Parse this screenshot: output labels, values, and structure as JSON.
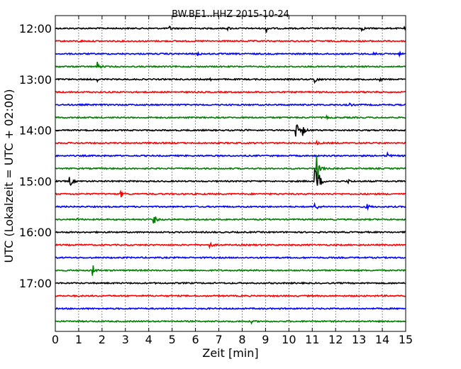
{
  "chart_data": {
    "type": "line",
    "title": "BW.BE1..HHZ 2015-10-24",
    "xlabel": "Zeit  [min]",
    "ylabel": "UTC (Lokalzeit = UTC + 02:00)",
    "xlim": [
      0,
      15
    ],
    "x_ticks": [
      "0",
      "1",
      "2",
      "3",
      "4",
      "5",
      "6",
      "7",
      "8",
      "9",
      "10",
      "11",
      "12",
      "13",
      "14",
      "15"
    ],
    "y_ticks": [
      "12:00",
      "13:00",
      "14:00",
      "15:00",
      "16:00",
      "17:00"
    ],
    "grid": "vertical dotted",
    "trace_colors": [
      "#000000",
      "#ff0000",
      "#0000ff",
      "#008000"
    ],
    "trace_interval_minutes": 15,
    "traces": [
      {
        "start": "12:00",
        "events": [
          {
            "t": 4.9,
            "amp": 0.35
          },
          {
            "t": 7.4,
            "amp": 0.25
          },
          {
            "t": 9.0,
            "amp": 1.0
          },
          {
            "t": 13.1,
            "amp": 0.5
          },
          {
            "t": 14.9,
            "amp": 0.2
          }
        ]
      },
      {
        "start": "12:15",
        "events": [
          {
            "t": 1.0,
            "amp": 0.15
          }
        ]
      },
      {
        "start": "12:30",
        "events": [
          {
            "t": 6.1,
            "amp": 0.3
          },
          {
            "t": 13.6,
            "amp": 1.2
          },
          {
            "t": 14.7,
            "amp": 0.3
          }
        ]
      },
      {
        "start": "12:45",
        "events": [
          {
            "t": 1.8,
            "amp": 0.8
          }
        ]
      },
      {
        "start": "13:00",
        "events": [
          {
            "t": 1.8,
            "amp": 0.25
          },
          {
            "t": 6.6,
            "amp": 0.25
          },
          {
            "t": 11.1,
            "amp": 0.9
          },
          {
            "t": 13.9,
            "amp": 0.2
          }
        ]
      },
      {
        "start": "13:15",
        "events": []
      },
      {
        "start": "13:30",
        "events": [
          {
            "t": 12.5,
            "amp": 0.6
          }
        ]
      },
      {
        "start": "13:45",
        "events": [
          {
            "t": 11.6,
            "amp": 0.2
          }
        ]
      },
      {
        "start": "14:00",
        "events": [
          {
            "t": 8.1,
            "amp": 0.2
          },
          {
            "t": 10.3,
            "amp": 1.6
          },
          {
            "t": 10.6,
            "amp": 0.9
          }
        ]
      },
      {
        "start": "14:15",
        "events": [
          {
            "t": 11.2,
            "amp": 0.25
          }
        ]
      },
      {
        "start": "14:30",
        "events": [
          {
            "t": 14.2,
            "amp": 0.6
          }
        ]
      },
      {
        "start": "14:45",
        "events": [
          {
            "t": 11.2,
            "amp": 3.0
          }
        ]
      },
      {
        "start": "15:00",
        "events": [
          {
            "t": 0.6,
            "amp": 1.3
          },
          {
            "t": 11.1,
            "amp": 4.5
          },
          {
            "t": 11.3,
            "amp": 1.0
          },
          {
            "t": 12.5,
            "amp": 0.5
          }
        ]
      },
      {
        "start": "15:15",
        "events": [
          {
            "t": 2.8,
            "amp": 0.6
          }
        ]
      },
      {
        "start": "15:30",
        "events": [
          {
            "t": 11.1,
            "amp": 1.2
          },
          {
            "t": 13.3,
            "amp": 0.7
          }
        ]
      },
      {
        "start": "15:45",
        "events": [
          {
            "t": 0.9,
            "amp": 0.3
          },
          {
            "t": 4.2,
            "amp": 1.1
          }
        ]
      },
      {
        "start": "16:00",
        "events": []
      },
      {
        "start": "16:15",
        "events": [
          {
            "t": 6.6,
            "amp": 0.6
          }
        ]
      },
      {
        "start": "16:30",
        "events": []
      },
      {
        "start": "16:45",
        "events": [
          {
            "t": 1.6,
            "amp": 1.0
          }
        ]
      },
      {
        "start": "17:00",
        "events": []
      },
      {
        "start": "17:15",
        "events": []
      },
      {
        "start": "17:30",
        "events": []
      },
      {
        "start": "17:45",
        "events": [
          {
            "t": 8.4,
            "amp": 0.25
          }
        ]
      }
    ]
  }
}
